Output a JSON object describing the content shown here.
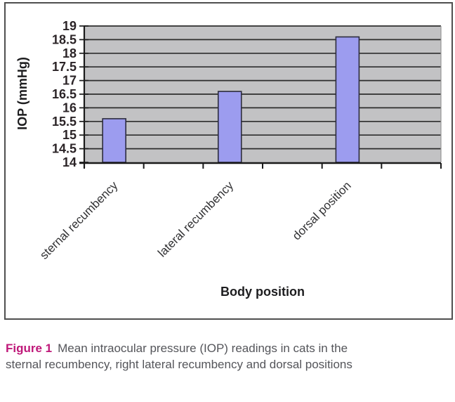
{
  "figure": {
    "caption_label": "Figure 1",
    "caption_text": "Mean intraocular pressure (IOP) readings in cats in the sternal recumbency, right lateral recumbency and dorsal positions"
  },
  "chart_data": {
    "type": "bar",
    "categories": [
      "sternal recumbency",
      "lateral recumbency",
      "dorsal position"
    ],
    "values": [
      15.6,
      16.6,
      18.6
    ],
    "title": "",
    "xlabel": "Body position",
    "ylabel": "IOP (mmHg)",
    "ylim": [
      14,
      19
    ],
    "ytick_step": 0.5,
    "grid": "horizontal",
    "legend": "none",
    "bar_color": "#9c9cef",
    "bar_border_color": "#2c2c3e",
    "plot_bg": "#c2c2c4",
    "grid_color": "#2d2d2d",
    "axis_color": "#1a1a1a",
    "plot_right_edge_color": "#969696"
  },
  "colors": {
    "caption_label": "#bf1879",
    "caption_text": "#54555a",
    "box_border": "#4f4f4f"
  }
}
